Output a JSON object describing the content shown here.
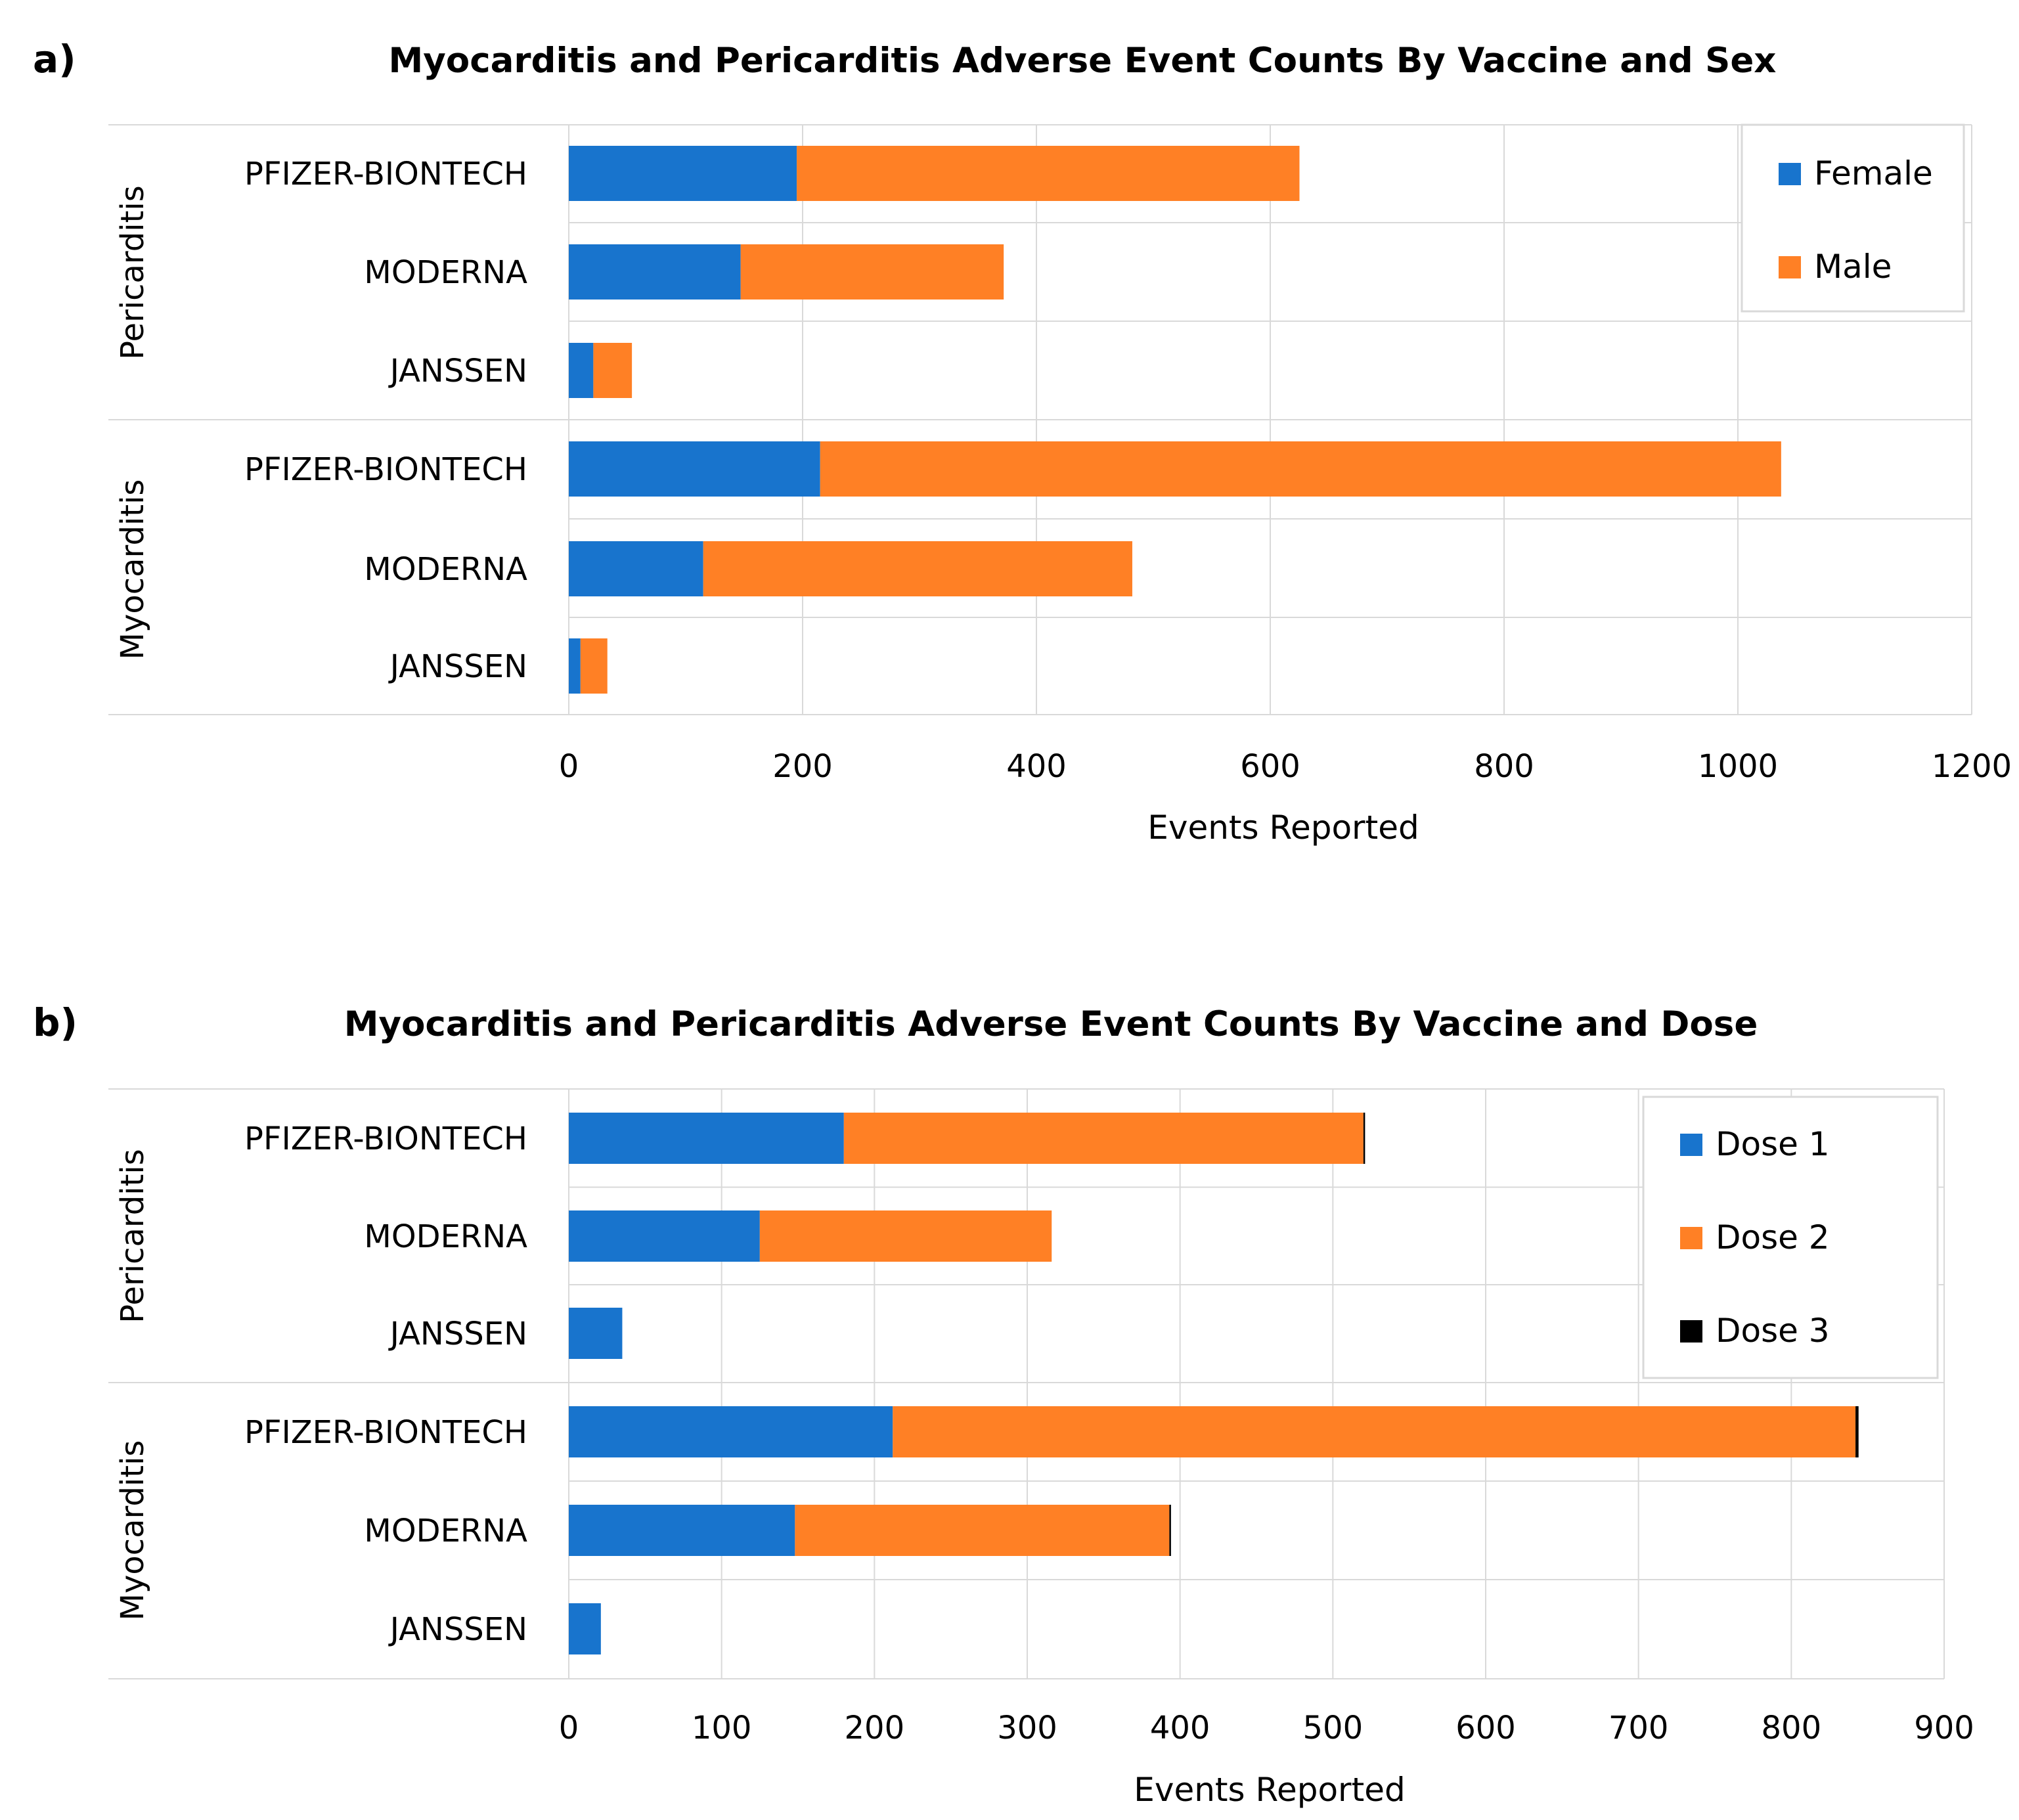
{
  "chart_data": [
    {
      "panel_label": "a)",
      "type": "bar",
      "orientation": "horizontal",
      "stacked": true,
      "title": "Myocarditis and Pericarditis Adverse Event Counts By Vaccine and Sex",
      "xlabel": "Events Reported",
      "ylabel": "",
      "xlim": [
        0,
        1200
      ],
      "xticks": [
        0,
        200,
        400,
        600,
        800,
        1000,
        1200
      ],
      "grid": true,
      "legend_position": "top-right",
      "groups": [
        {
          "name": "Pericarditis",
          "categories": [
            "PFIZER-BIONTECH",
            "MODERNA",
            "JANSSEN"
          ]
        },
        {
          "name": "Myocarditis",
          "categories": [
            "PFIZER-BIONTECH",
            "MODERNA",
            "JANSSEN"
          ]
        }
      ],
      "series": [
        {
          "name": "Female",
          "color": "#1874CD",
          "values": [
            195,
            147,
            21,
            215,
            115,
            10
          ]
        },
        {
          "name": "Male",
          "color": "#FF8025",
          "values": [
            430,
            225,
            33,
            822,
            367,
            23
          ]
        }
      ]
    },
    {
      "panel_label": "b)",
      "type": "bar",
      "orientation": "horizontal",
      "stacked": true,
      "title": "Myocarditis and Pericarditis Adverse Event Counts By Vaccine and Dose",
      "xlabel": "Events Reported",
      "ylabel": "",
      "xlim": [
        0,
        900
      ],
      "xticks": [
        0,
        100,
        200,
        300,
        400,
        500,
        600,
        700,
        800,
        900
      ],
      "grid": true,
      "legend_position": "top-right",
      "groups": [
        {
          "name": "Pericarditis",
          "categories": [
            "PFIZER-BIONTECH",
            "MODERNA",
            "JANSSEN"
          ]
        },
        {
          "name": "Myocarditis",
          "categories": [
            "PFIZER-BIONTECH",
            "MODERNA",
            "JANSSEN"
          ]
        }
      ],
      "series": [
        {
          "name": "Dose 1",
          "color": "#1874CD",
          "values": [
            180,
            125,
            35,
            212,
            148,
            21
          ]
        },
        {
          "name": "Dose 2",
          "color": "#FF8025",
          "values": [
            340,
            191,
            0,
            630,
            245,
            0
          ]
        },
        {
          "name": "Dose 3",
          "color": "#000000",
          "values": [
            1,
            0,
            0,
            2,
            1,
            0
          ]
        }
      ]
    }
  ]
}
